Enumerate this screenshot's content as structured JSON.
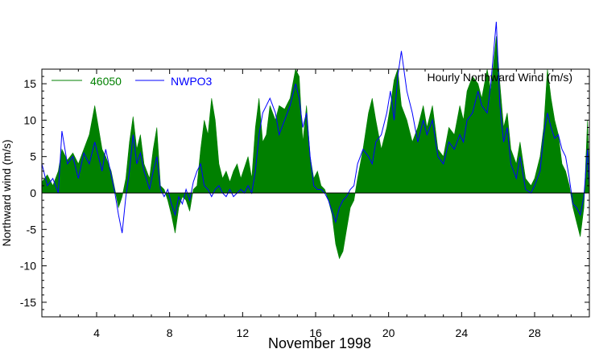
{
  "chart_data": {
    "type": "area",
    "title": "Hourly Northward Wind (m/s)",
    "xlabel": "November 1998",
    "ylabel": "Northward wind (m/s)",
    "xlim": [
      1,
      31
    ],
    "ylim": [
      -17,
      17
    ],
    "xticks": [
      4,
      8,
      12,
      16,
      20,
      24,
      28
    ],
    "xtick_labels": [
      "4",
      "8",
      "12",
      "16",
      "20",
      "24",
      "28"
    ],
    "yticks": [
      -15,
      -10,
      -5,
      0,
      5,
      10,
      15
    ],
    "ytick_labels": [
      "-15",
      "-10",
      "-5",
      "0",
      "5",
      "10",
      "15"
    ],
    "grid": false,
    "legend_position": "top-left",
    "series": [
      {
        "name": "46050",
        "style": "filled-area",
        "color": "#008000",
        "points": [
          [
            1.0,
            1.5
          ],
          [
            1.3,
            2.5
          ],
          [
            1.6,
            1.0
          ],
          [
            1.9,
            3.0
          ],
          [
            2.1,
            6.0
          ],
          [
            2.4,
            4.5
          ],
          [
            2.7,
            5.5
          ],
          [
            3.0,
            4.0
          ],
          [
            3.3,
            6.0
          ],
          [
            3.6,
            8.0
          ],
          [
            3.9,
            12.0
          ],
          [
            4.1,
            9.0
          ],
          [
            4.3,
            6.0
          ],
          [
            4.5,
            5.0
          ],
          [
            4.8,
            3.0
          ],
          [
            5.0,
            0.5
          ],
          [
            5.2,
            -2.0
          ],
          [
            5.4,
            -0.5
          ],
          [
            5.6,
            2.0
          ],
          [
            5.8,
            7.0
          ],
          [
            6.0,
            10.5
          ],
          [
            6.2,
            6.0
          ],
          [
            6.4,
            8.0
          ],
          [
            6.6,
            4.0
          ],
          [
            6.9,
            2.0
          ],
          [
            7.1,
            6.0
          ],
          [
            7.3,
            9.0
          ],
          [
            7.5,
            1.0
          ],
          [
            7.7,
            0.5
          ],
          [
            7.9,
            -1.0
          ],
          [
            8.1,
            -3.0
          ],
          [
            8.3,
            -5.5
          ],
          [
            8.5,
            -2.0
          ],
          [
            8.7,
            -0.5
          ],
          [
            8.9,
            -1.0
          ],
          [
            9.1,
            -2.5
          ],
          [
            9.3,
            0.5
          ],
          [
            9.5,
            1.0
          ],
          [
            9.7,
            6.0
          ],
          [
            9.9,
            10.0
          ],
          [
            10.1,
            8.0
          ],
          [
            10.3,
            13.0
          ],
          [
            10.5,
            10.0
          ],
          [
            10.7,
            4.0
          ],
          [
            10.9,
            2.0
          ],
          [
            11.1,
            3.0
          ],
          [
            11.3,
            1.5
          ],
          [
            11.5,
            3.0
          ],
          [
            11.7,
            4.0
          ],
          [
            11.9,
            2.0
          ],
          [
            12.1,
            3.5
          ],
          [
            12.3,
            5.0
          ],
          [
            12.5,
            2.0
          ],
          [
            12.7,
            9.0
          ],
          [
            12.9,
            13.0
          ],
          [
            13.1,
            7.0
          ],
          [
            13.3,
            8.0
          ],
          [
            13.5,
            12.0
          ],
          [
            13.8,
            10.0
          ],
          [
            14.0,
            12.0
          ],
          [
            14.3,
            11.5
          ],
          [
            14.6,
            13.0
          ],
          [
            14.9,
            17.0
          ],
          [
            15.1,
            16.0
          ],
          [
            15.3,
            7.0
          ],
          [
            15.5,
            12.0
          ],
          [
            15.7,
            5.0
          ],
          [
            15.9,
            2.0
          ],
          [
            16.1,
            3.0
          ],
          [
            16.3,
            1.0
          ],
          [
            16.5,
            0.5
          ],
          [
            16.7,
            -1.0
          ],
          [
            16.9,
            -3.0
          ],
          [
            17.1,
            -7.0
          ],
          [
            17.3,
            -9.0
          ],
          [
            17.5,
            -8.0
          ],
          [
            17.7,
            -5.0
          ],
          [
            17.9,
            -2.0
          ],
          [
            18.1,
            -1.0
          ],
          [
            18.3,
            2.0
          ],
          [
            18.6,
            6.0
          ],
          [
            18.9,
            11.0
          ],
          [
            19.1,
            13.0
          ],
          [
            19.3,
            10.0
          ],
          [
            19.6,
            6.0
          ],
          [
            19.9,
            9.0
          ],
          [
            20.1,
            12.0
          ],
          [
            20.3,
            15.5
          ],
          [
            20.5,
            17.0
          ],
          [
            20.7,
            12.0
          ],
          [
            21.0,
            10.0
          ],
          [
            21.3,
            7.0
          ],
          [
            21.6,
            9.0
          ],
          [
            21.9,
            12.0
          ],
          [
            22.1,
            9.0
          ],
          [
            22.4,
            12.0
          ],
          [
            22.7,
            6.0
          ],
          [
            23.0,
            5.0
          ],
          [
            23.3,
            9.0
          ],
          [
            23.6,
            8.0
          ],
          [
            23.9,
            12.0
          ],
          [
            24.1,
            10.0
          ],
          [
            24.3,
            14.0
          ],
          [
            24.6,
            16.0
          ],
          [
            24.9,
            15.0
          ],
          [
            25.1,
            13.0
          ],
          [
            25.4,
            17.0
          ],
          [
            25.6,
            14.0
          ],
          [
            25.9,
            21.5
          ],
          [
            26.1,
            15.0
          ],
          [
            26.3,
            9.0
          ],
          [
            26.5,
            11.0
          ],
          [
            26.7,
            6.0
          ],
          [
            27.0,
            4.0
          ],
          [
            27.2,
            7.0
          ],
          [
            27.5,
            2.0
          ],
          [
            27.8,
            1.0
          ],
          [
            28.0,
            2.0
          ],
          [
            28.3,
            5.0
          ],
          [
            28.5,
            9.0
          ],
          [
            28.7,
            17.0
          ],
          [
            28.9,
            13.0
          ],
          [
            29.1,
            10.0
          ],
          [
            29.3,
            8.0
          ],
          [
            29.5,
            4.0
          ],
          [
            29.7,
            3.0
          ],
          [
            29.9,
            1.0
          ],
          [
            30.1,
            -2.0
          ],
          [
            30.3,
            -4.0
          ],
          [
            30.5,
            -6.0
          ],
          [
            30.7,
            -2.0
          ],
          [
            30.9,
            10.0
          ],
          [
            31.0,
            2.0
          ]
        ]
      },
      {
        "name": "NWPO3",
        "style": "line",
        "color": "#0000ff",
        "points": [
          [
            1.0,
            4.0
          ],
          [
            1.3,
            1.0
          ],
          [
            1.6,
            2.0
          ],
          [
            1.9,
            0.0
          ],
          [
            2.1,
            8.5
          ],
          [
            2.4,
            4.0
          ],
          [
            2.7,
            5.0
          ],
          [
            3.0,
            2.0
          ],
          [
            3.3,
            5.5
          ],
          [
            3.6,
            4.0
          ],
          [
            3.9,
            7.0
          ],
          [
            4.1,
            5.0
          ],
          [
            4.3,
            3.0
          ],
          [
            4.5,
            6.0
          ],
          [
            4.8,
            2.5
          ],
          [
            5.0,
            0.0
          ],
          [
            5.2,
            -3.0
          ],
          [
            5.4,
            -5.5
          ],
          [
            5.6,
            -0.5
          ],
          [
            5.8,
            3.0
          ],
          [
            6.0,
            8.0
          ],
          [
            6.2,
            4.0
          ],
          [
            6.4,
            5.5
          ],
          [
            6.6,
            3.0
          ],
          [
            6.9,
            0.5
          ],
          [
            7.1,
            3.0
          ],
          [
            7.3,
            5.0
          ],
          [
            7.5,
            0.5
          ],
          [
            7.7,
            -0.5
          ],
          [
            7.9,
            0.5
          ],
          [
            8.1,
            -1.5
          ],
          [
            8.3,
            -3.0
          ],
          [
            8.5,
            -0.5
          ],
          [
            8.7,
            -1.5
          ],
          [
            8.9,
            0.5
          ],
          [
            9.1,
            -1.0
          ],
          [
            9.3,
            1.5
          ],
          [
            9.5,
            3.0
          ],
          [
            9.7,
            4.0
          ],
          [
            9.9,
            1.0
          ],
          [
            10.1,
            0.5
          ],
          [
            10.3,
            -0.5
          ],
          [
            10.5,
            0.5
          ],
          [
            10.7,
            1.0
          ],
          [
            10.9,
            0.0
          ],
          [
            11.1,
            -0.5
          ],
          [
            11.3,
            0.5
          ],
          [
            11.5,
            -0.5
          ],
          [
            11.7,
            0.0
          ],
          [
            11.9,
            0.5
          ],
          [
            12.1,
            0.0
          ],
          [
            12.3,
            1.0
          ],
          [
            12.5,
            0.0
          ],
          [
            12.7,
            3.0
          ],
          [
            12.9,
            8.0
          ],
          [
            13.1,
            11.0
          ],
          [
            13.3,
            12.0
          ],
          [
            13.5,
            13.0
          ],
          [
            13.8,
            11.0
          ],
          [
            14.0,
            8.0
          ],
          [
            14.3,
            10.0
          ],
          [
            14.6,
            12.0
          ],
          [
            14.9,
            15.0
          ],
          [
            15.1,
            13.0
          ],
          [
            15.3,
            9.0
          ],
          [
            15.5,
            11.0
          ],
          [
            15.7,
            5.0
          ],
          [
            15.9,
            1.0
          ],
          [
            16.1,
            0.5
          ],
          [
            16.3,
            0.5
          ],
          [
            16.5,
            0.0
          ],
          [
            16.7,
            -1.0
          ],
          [
            16.9,
            -2.5
          ],
          [
            17.1,
            -4.0
          ],
          [
            17.3,
            -2.0
          ],
          [
            17.5,
            -1.0
          ],
          [
            17.7,
            -0.5
          ],
          [
            17.9,
            0.5
          ],
          [
            18.1,
            1.0
          ],
          [
            18.3,
            4.0
          ],
          [
            18.6,
            6.0
          ],
          [
            18.9,
            5.0
          ],
          [
            19.1,
            4.0
          ],
          [
            19.3,
            7.0
          ],
          [
            19.6,
            8.0
          ],
          [
            19.9,
            11.0
          ],
          [
            20.1,
            14.0
          ],
          [
            20.3,
            10.0
          ],
          [
            20.5,
            16.0
          ],
          [
            20.7,
            19.5
          ],
          [
            21.0,
            14.0
          ],
          [
            21.3,
            11.0
          ],
          [
            21.6,
            7.0
          ],
          [
            21.9,
            10.0
          ],
          [
            22.1,
            8.0
          ],
          [
            22.4,
            10.0
          ],
          [
            22.7,
            5.0
          ],
          [
            23.0,
            4.0
          ],
          [
            23.3,
            7.0
          ],
          [
            23.6,
            6.0
          ],
          [
            23.9,
            8.0
          ],
          [
            24.1,
            7.0
          ],
          [
            24.3,
            10.0
          ],
          [
            24.6,
            11.0
          ],
          [
            24.9,
            14.0
          ],
          [
            25.1,
            12.0
          ],
          [
            25.4,
            11.0
          ],
          [
            25.6,
            15.0
          ],
          [
            25.9,
            23.5
          ],
          [
            26.1,
            12.0
          ],
          [
            26.3,
            7.0
          ],
          [
            26.5,
            9.0
          ],
          [
            26.7,
            4.0
          ],
          [
            27.0,
            2.0
          ],
          [
            27.2,
            5.0
          ],
          [
            27.5,
            0.5
          ],
          [
            27.8,
            0.0
          ],
          [
            28.0,
            1.0
          ],
          [
            28.3,
            3.0
          ],
          [
            28.5,
            8.0
          ],
          [
            28.7,
            11.0
          ],
          [
            28.9,
            9.0
          ],
          [
            29.1,
            7.5
          ],
          [
            29.3,
            8.0
          ],
          [
            29.5,
            6.0
          ],
          [
            29.7,
            5.0
          ],
          [
            29.9,
            2.0
          ],
          [
            30.1,
            -1.5
          ],
          [
            30.3,
            -2.0
          ],
          [
            30.5,
            -3.0
          ],
          [
            30.7,
            -0.5
          ],
          [
            30.9,
            6.0
          ],
          [
            31.0,
            1.0
          ]
        ]
      }
    ]
  }
}
